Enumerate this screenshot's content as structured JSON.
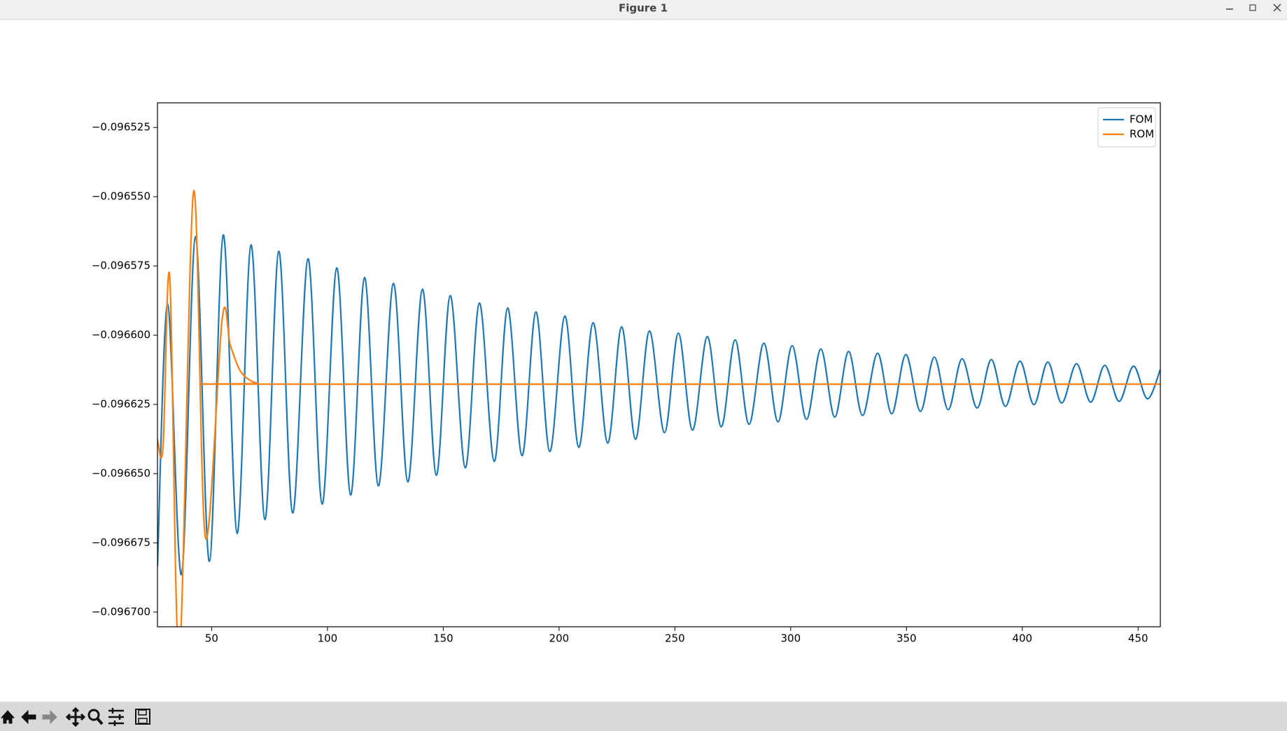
{
  "window": {
    "title": "Figure 1"
  },
  "chart_data": {
    "type": "line",
    "xlim": [
      26.6,
      459.6
    ],
    "ylim": [
      -0.0967053,
      -0.0965161
    ],
    "xticks": [
      50,
      100,
      150,
      200,
      250,
      300,
      350,
      400,
      450
    ],
    "yticks": [
      {
        "value": -0.096525,
        "label": "−0.096525"
      },
      {
        "value": -0.09655,
        "label": "−0.096550"
      },
      {
        "value": -0.096575,
        "label": "−0.096575"
      },
      {
        "value": -0.0966,
        "label": "−0.096600"
      },
      {
        "value": -0.096625,
        "label": "−0.096625"
      },
      {
        "value": -0.09665,
        "label": "−0.096650"
      },
      {
        "value": -0.096675,
        "label": "−0.096675"
      },
      {
        "value": -0.0967,
        "label": "−0.096700"
      }
    ],
    "legend": "upper right",
    "series": [
      {
        "name": "FOM",
        "color": "#1f77b4",
        "x": [
          26.6,
          31,
          37,
          43,
          49,
          55,
          61,
          67,
          73,
          79,
          85,
          91.6,
          97.7,
          104,
          110,
          116,
          122,
          128.5,
          134.7,
          141,
          147,
          153,
          159.5,
          165.6,
          172,
          177.8,
          184,
          190,
          196,
          202.5,
          208.5,
          214.7,
          221,
          227,
          233,
          239,
          245.5,
          251.5,
          257.6,
          264,
          270,
          276,
          282,
          288.4,
          294.5,
          300.6,
          306.8,
          313,
          319,
          325,
          331,
          337.5,
          343.6,
          349.7,
          356,
          362,
          368,
          374,
          380.5,
          386.6,
          392.7,
          399,
          405,
          411,
          417,
          423.4,
          429.5,
          435.6,
          441.8,
          448,
          454,
          459.6
        ],
        "values": [
          -0.0966835,
          -0.0965887,
          -0.0966864,
          -0.0965644,
          -0.0966817,
          -0.0965638,
          -0.0966716,
          -0.0965674,
          -0.0966666,
          -0.0965697,
          -0.0966642,
          -0.0965724,
          -0.096661,
          -0.0965757,
          -0.0966577,
          -0.0965792,
          -0.0966544,
          -0.0965813,
          -0.096653,
          -0.0965834,
          -0.0966506,
          -0.0965857,
          -0.0966479,
          -0.0965884,
          -0.0966456,
          -0.0965902,
          -0.0966435,
          -0.0965916,
          -0.096642,
          -0.0965931,
          -0.0966405,
          -0.0965955,
          -0.096639,
          -0.096597,
          -0.0966376,
          -0.0965985,
          -0.0966352,
          -0.0965993,
          -0.0966343,
          -0.0966005,
          -0.0966331,
          -0.0966017,
          -0.0966322,
          -0.0966029,
          -0.0966313,
          -0.0966038,
          -0.0966304,
          -0.096605,
          -0.0966296,
          -0.0966059,
          -0.096629,
          -0.0966065,
          -0.0966284,
          -0.096607,
          -0.0966275,
          -0.0966079,
          -0.0966269,
          -0.0966085,
          -0.0966263,
          -0.0966088,
          -0.0966257,
          -0.0966094,
          -0.0966251,
          -0.0966097,
          -0.0966245,
          -0.0966103,
          -0.0966242,
          -0.0966109,
          -0.0966239,
          -0.0966112,
          -0.096623,
          -0.0966124
        ]
      },
      {
        "name": "ROM",
        "color": "#ff7f0e",
        "x": [
          26.6,
          29,
          31.9,
          36,
          42.2,
          47.3,
          54.6,
          58,
          62,
          66,
          70,
          75,
          459.6
        ],
        "values": [
          -0.0966376,
          -0.0966405,
          -0.0965789,
          -0.0967161,
          -0.0965481,
          -0.0966731,
          -0.0965937,
          -0.0966035,
          -0.0966124,
          -0.096616,
          -0.0966174,
          -0.0966177,
          -0.0966177
        ]
      }
    ]
  }
}
